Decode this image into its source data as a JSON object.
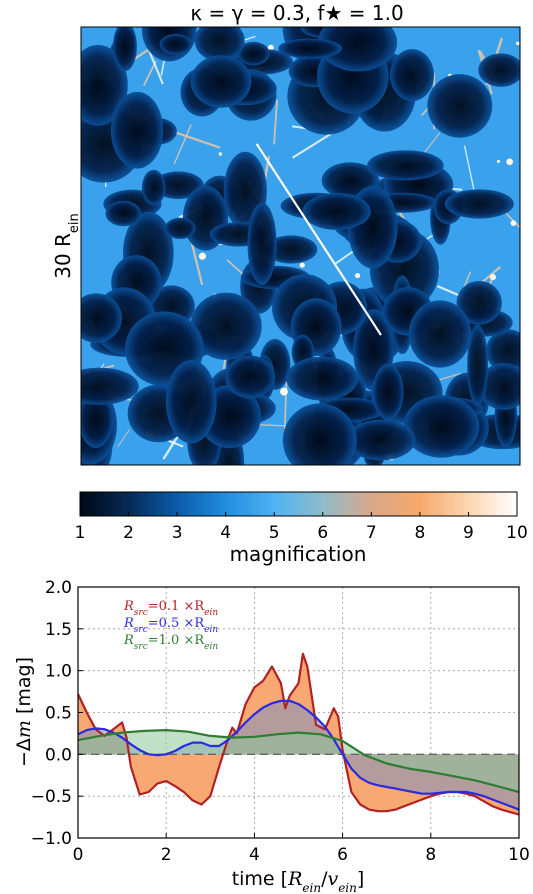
{
  "map": {
    "title": "κ = γ = 0.3, f★ = 1.0",
    "side_label": "30 R",
    "side_label_sub": "ein",
    "path_line": {
      "from": [
        2.0,
        22.0
      ],
      "to": [
        20.5,
        8.9
      ]
    }
  },
  "colorbar": {
    "label": "magnification",
    "min": 1,
    "max": 10,
    "ticks": [
      "1",
      "2",
      "3",
      "4",
      "5",
      "6",
      "7",
      "8",
      "9",
      "10"
    ],
    "colors": [
      "#000814",
      "#062a55",
      "#0b5ca8",
      "#1f8de0",
      "#4fb3f2",
      "#8fbcc8",
      "#d9a78a",
      "#f7a96a",
      "#fcd6b0",
      "#ffffff"
    ]
  },
  "chart_data": {
    "type": "line",
    "xlabel": "time [R_ein/v_ein]",
    "ylabel": "−Δm [mag]",
    "xlim": [
      0,
      10
    ],
    "ylim": [
      -1.0,
      2.0
    ],
    "xticks": [
      "0",
      "2",
      "4",
      "6",
      "8",
      "10"
    ],
    "yticks": [
      "−1.0",
      "−0.5",
      "0.0",
      "0.5",
      "1.0",
      "1.5",
      "2.0"
    ],
    "grid": true,
    "legend_position": "top-left",
    "series": [
      {
        "name": "R_src = 0.1 × R_ein",
        "color": "#b22222",
        "fill": "#f7a36b",
        "x": [
          0,
          0.2,
          0.4,
          0.6,
          0.8,
          1.0,
          1.1,
          1.2,
          1.4,
          1.6,
          1.8,
          2.0,
          2.2,
          2.4,
          2.6,
          2.8,
          3.0,
          3.2,
          3.4,
          3.5,
          3.6,
          3.8,
          4.0,
          4.2,
          4.4,
          4.6,
          4.7,
          4.8,
          5.0,
          5.1,
          5.2,
          5.4,
          5.6,
          5.8,
          5.9,
          6.0,
          6.2,
          6.4,
          6.6,
          6.8,
          7.0,
          7.2,
          7.4,
          7.6,
          7.8,
          8.0,
          8.2,
          8.4,
          8.6,
          8.8,
          9.0,
          9.2,
          9.4,
          9.6,
          9.8,
          10.0
        ],
        "y": [
          0.72,
          0.5,
          0.3,
          0.22,
          0.3,
          0.38,
          0.2,
          -0.15,
          -0.48,
          -0.45,
          -0.35,
          -0.32,
          -0.38,
          -0.45,
          -0.55,
          -0.6,
          -0.5,
          -0.15,
          0.18,
          0.32,
          0.25,
          0.6,
          0.8,
          0.88,
          1.05,
          0.85,
          0.55,
          0.7,
          0.85,
          1.2,
          1.05,
          0.35,
          0.3,
          0.55,
          0.45,
          0.05,
          -0.45,
          -0.6,
          -0.66,
          -0.68,
          -0.68,
          -0.66,
          -0.62,
          -0.58,
          -0.54,
          -0.5,
          -0.47,
          -0.45,
          -0.45,
          -0.47,
          -0.5,
          -0.56,
          -0.62,
          -0.66,
          -0.69,
          -0.72
        ]
      },
      {
        "name": "R_src = 0.5 × R_ein",
        "color": "#2a2ae0",
        "fill": "#7d8fbf",
        "x": [
          0,
          0.2,
          0.4,
          0.6,
          0.8,
          1.0,
          1.2,
          1.4,
          1.6,
          1.8,
          2.0,
          2.2,
          2.4,
          2.6,
          2.8,
          3.0,
          3.2,
          3.4,
          3.6,
          3.8,
          4.0,
          4.2,
          4.4,
          4.6,
          4.8,
          5.0,
          5.2,
          5.4,
          5.6,
          5.8,
          6.0,
          6.2,
          6.4,
          6.6,
          6.8,
          7.0,
          7.2,
          7.4,
          7.6,
          7.8,
          8.0,
          8.2,
          8.4,
          8.6,
          8.8,
          9.0,
          9.2,
          9.4,
          9.6,
          9.8,
          10.0
        ],
        "y": [
          0.24,
          0.29,
          0.31,
          0.3,
          0.26,
          0.2,
          0.12,
          0.05,
          0.0,
          -0.01,
          0.0,
          0.04,
          0.1,
          0.14,
          0.14,
          0.1,
          0.1,
          0.17,
          0.27,
          0.38,
          0.48,
          0.56,
          0.61,
          0.64,
          0.64,
          0.6,
          0.53,
          0.44,
          0.33,
          0.18,
          0.0,
          -0.17,
          -0.28,
          -0.34,
          -0.37,
          -0.39,
          -0.41,
          -0.43,
          -0.45,
          -0.47,
          -0.47,
          -0.46,
          -0.45,
          -0.45,
          -0.45,
          -0.47,
          -0.5,
          -0.54,
          -0.58,
          -0.62,
          -0.66
        ]
      },
      {
        "name": "R_src = 1.0 × R_ein",
        "color": "#2e7d32",
        "fill": "#8fc59a",
        "x": [
          0,
          0.5,
          1.0,
          1.5,
          2.0,
          2.5,
          3.0,
          3.5,
          4.0,
          4.5,
          5.0,
          5.5,
          6.0,
          6.5,
          7.0,
          7.5,
          8.0,
          8.5,
          9.0,
          9.5,
          10.0
        ],
        "y": [
          0.17,
          0.22,
          0.26,
          0.28,
          0.29,
          0.27,
          0.22,
          0.2,
          0.21,
          0.24,
          0.26,
          0.24,
          0.16,
          -0.01,
          -0.11,
          -0.17,
          -0.21,
          -0.26,
          -0.31,
          -0.38,
          -0.45
        ]
      }
    ],
    "legend": [
      {
        "prefix": "R",
        "sub": "src",
        "eq": "=0.1 ×R",
        "sub2": "ein",
        "color": "#b22222"
      },
      {
        "prefix": "R",
        "sub": "src",
        "eq": "=0.5 ×R",
        "sub2": "ein",
        "color": "#2a2ae0"
      },
      {
        "prefix": "R",
        "sub": "src",
        "eq": "=1.0 ×R",
        "sub2": "ein",
        "color": "#2e7d32"
      }
    ]
  }
}
